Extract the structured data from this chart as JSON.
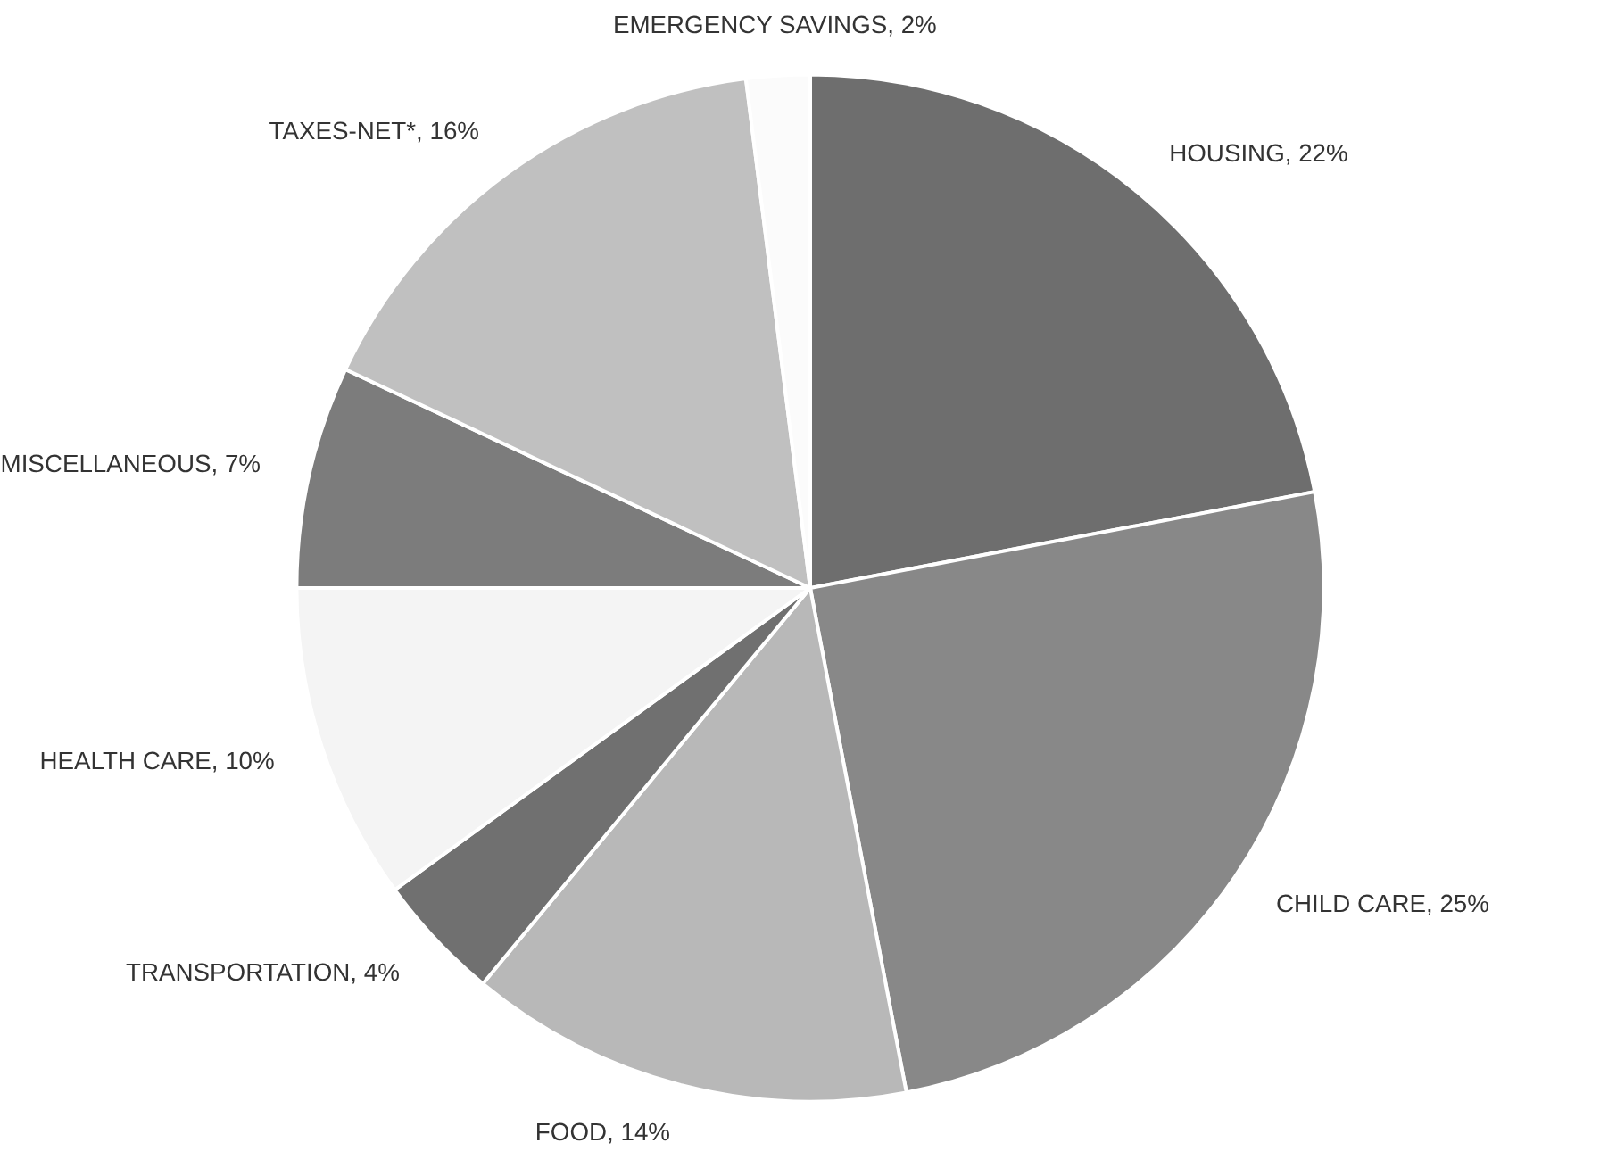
{
  "chart_data": {
    "type": "pie",
    "categories": [
      "HOUSING, 22%",
      "CHILD CARE, 25%",
      "FOOD, 14%",
      "TRANSPORTATION, 4%",
      "HEALTH CARE, 10%",
      "MISCELLANEOUS, 7%",
      "TAXES-NET*, 16%",
      "EMERGENCY SAVINGS, 2%"
    ],
    "values": [
      22,
      25,
      14,
      4,
      10,
      7,
      16,
      2
    ],
    "colors": [
      "#6e6e6e",
      "#888888",
      "#b8b8b8",
      "#707070",
      "#f4f4f4",
      "#7c7c7c",
      "#c0c0c0",
      "#fbfbfb"
    ],
    "legend": false
  }
}
